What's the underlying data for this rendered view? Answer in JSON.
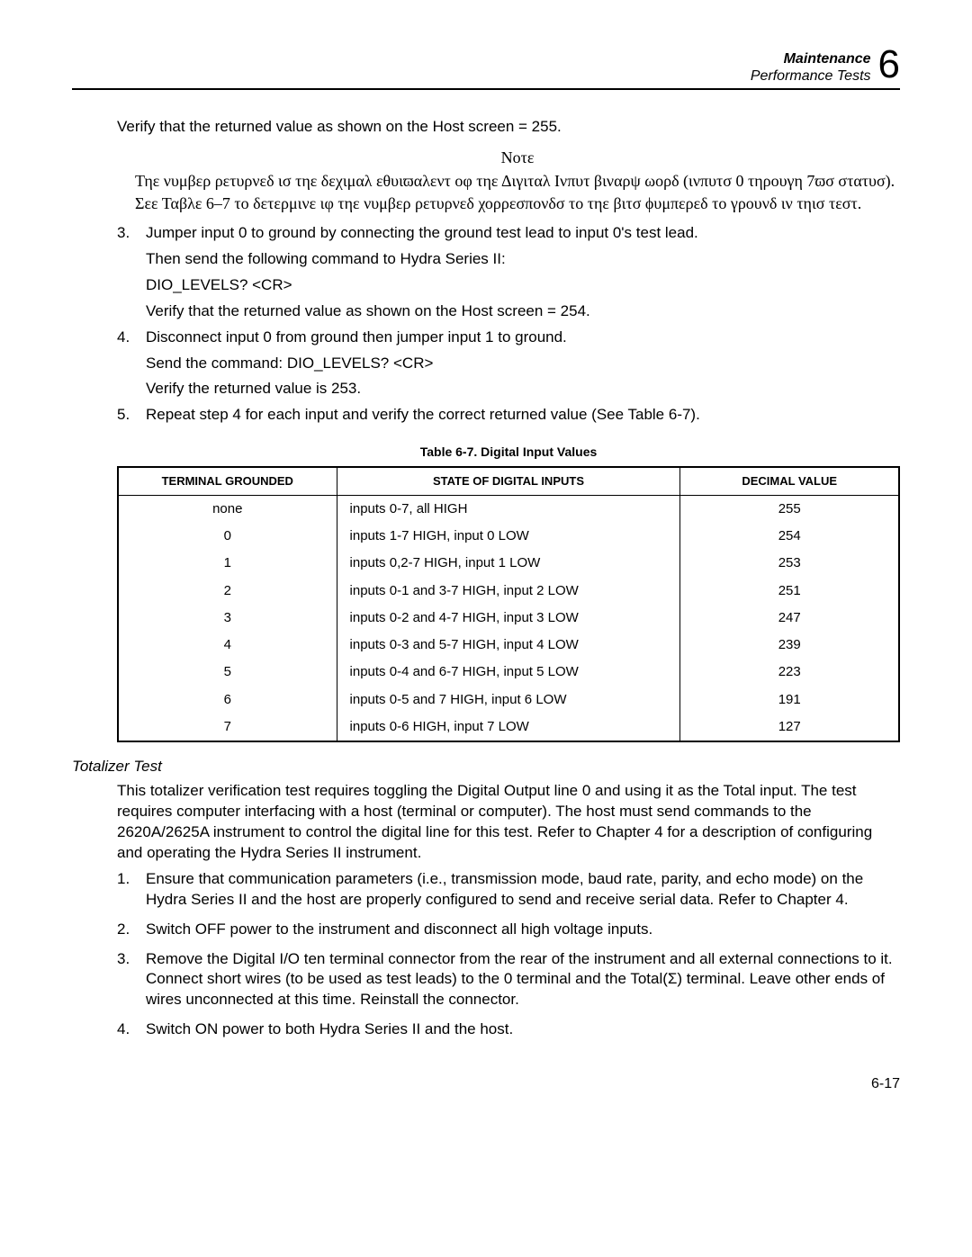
{
  "header": {
    "title_bold": "Maintenance",
    "subtitle": "Performance Tests",
    "chapter": "6"
  },
  "intro_para": "Verify that the returned value as shown on the Host screen = 255.",
  "note": {
    "title": "Νοτε",
    "body": "Τηε νυμβερ ρετυρνεδ ισ τηε δεχιμαλ εθυιϖαλεντ οφ τηε Διγιταλ Ινπυτ βιναρψ ωορδ (ινπυτσ 0 τηρουγη 7ϖσ στατυσ). Σεε Ταβλε 6–7 το δετερμινε ιφ τηε νυμβερ ρετυρνεδ χορρεσπονδσ το τηε βιτσ ϕυμπερεδ το γρουνδ ιν τηισ τεστ."
  },
  "steps_a": [
    {
      "p1": "Jumper input 0 to ground by connecting the ground test lead to input 0's test lead.",
      "p2": "Then send the following command to Hydra Series II:",
      "p3": "DIO_LEVELS? <CR>",
      "p4": "Verify that the returned value as shown on the Host screen = 254."
    },
    {
      "p1": "Disconnect input 0 from ground then jumper input 1 to ground.",
      "p2": "Send the command: DIO_LEVELS? <CR>",
      "p3": "Verify the returned value is 253."
    },
    {
      "p1": "Repeat step 4 for each input and verify the correct returned value (See Table 6-7)."
    }
  ],
  "table": {
    "caption": "Table 6-7. Digital Input Values",
    "headers": [
      "TERMINAL GROUNDED",
      "STATE OF DIGITAL INPUTS",
      "DECIMAL VALUE"
    ],
    "rows": [
      [
        "none",
        "inputs 0-7, all HIGH",
        "255"
      ],
      [
        "0",
        "inputs 1-7 HIGH, input 0 LOW",
        "254"
      ],
      [
        "1",
        "inputs 0,2-7 HIGH, input 1 LOW",
        "253"
      ],
      [
        "2",
        "inputs 0-1 and 3-7 HIGH, input 2 LOW",
        "251"
      ],
      [
        "3",
        "inputs 0-2 and 4-7 HIGH, input 3 LOW",
        "247"
      ],
      [
        "4",
        "inputs 0-3 and 5-7 HIGH, input 4 LOW",
        "239"
      ],
      [
        "5",
        "inputs 0-4 and 6-7 HIGH, input 5 LOW",
        "223"
      ],
      [
        "6",
        "inputs 0-5 and 7 HIGH, input 6 LOW",
        "191"
      ],
      [
        "7",
        "inputs 0-6 HIGH, input 7 LOW",
        "127"
      ]
    ]
  },
  "section2": {
    "heading": "Totalizer Test",
    "intro": "This totalizer verification test requires toggling the Digital Output line 0 and using it as the Total input. The test requires computer interfacing with a host (terminal or computer). The host must send commands to the 2620A/2625A instrument to control the digital line for this test. Refer to Chapter 4 for a description of configuring and operating the Hydra Series II instrument.",
    "steps": [
      "Ensure that communication parameters (i.e., transmission mode, baud rate, parity, and echo mode) on the Hydra Series II and the host are properly configured to send and receive serial data. Refer to Chapter 4.",
      "Switch OFF power to the instrument and disconnect all high voltage inputs.",
      "Remove the Digital I/O ten terminal connector from the rear of the instrument and all external connections to it. Connect short wires (to be used as test leads) to the 0 terminal and the Total(Σ) terminal. Leave other ends of wires unconnected at this time. Reinstall the connector.",
      "Switch ON power to both Hydra Series II and the host."
    ]
  },
  "page_number": "6-17"
}
